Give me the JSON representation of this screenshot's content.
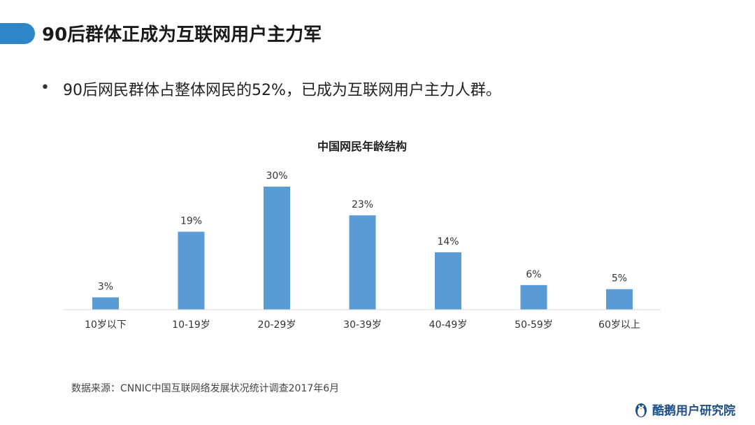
{
  "slide": {
    "title": "90后群体正成为互联网用户主力军",
    "bullet": "90后网民群体占整体网民的52%，已成为互联网用户主力人群。",
    "source": "数据来源：CNNIC中国互联网络发展状况统计调查2017年6月",
    "brand": "酷鹅用户研究院",
    "brand_icon": "penguin-icon"
  },
  "colors": {
    "accent": "#2f86c7",
    "bar": "#5b9bd5",
    "axis": "#d9d9d9",
    "brand": "#1e4f86"
  },
  "chart_data": {
    "type": "bar",
    "title": "中国网民年龄结构",
    "categories": [
      "10岁以下",
      "10-19岁",
      "20-29岁",
      "30-39岁",
      "40-49岁",
      "50-59岁",
      "60岁以上"
    ],
    "values": [
      3,
      19,
      30,
      23,
      14,
      6,
      5
    ],
    "labels": [
      "3%",
      "19%",
      "30%",
      "23%",
      "14%",
      "6%",
      "5%"
    ],
    "unit": "%",
    "xlabel": "",
    "ylabel": "",
    "ylim": [
      0,
      30
    ],
    "grid": false,
    "legend": "none"
  }
}
